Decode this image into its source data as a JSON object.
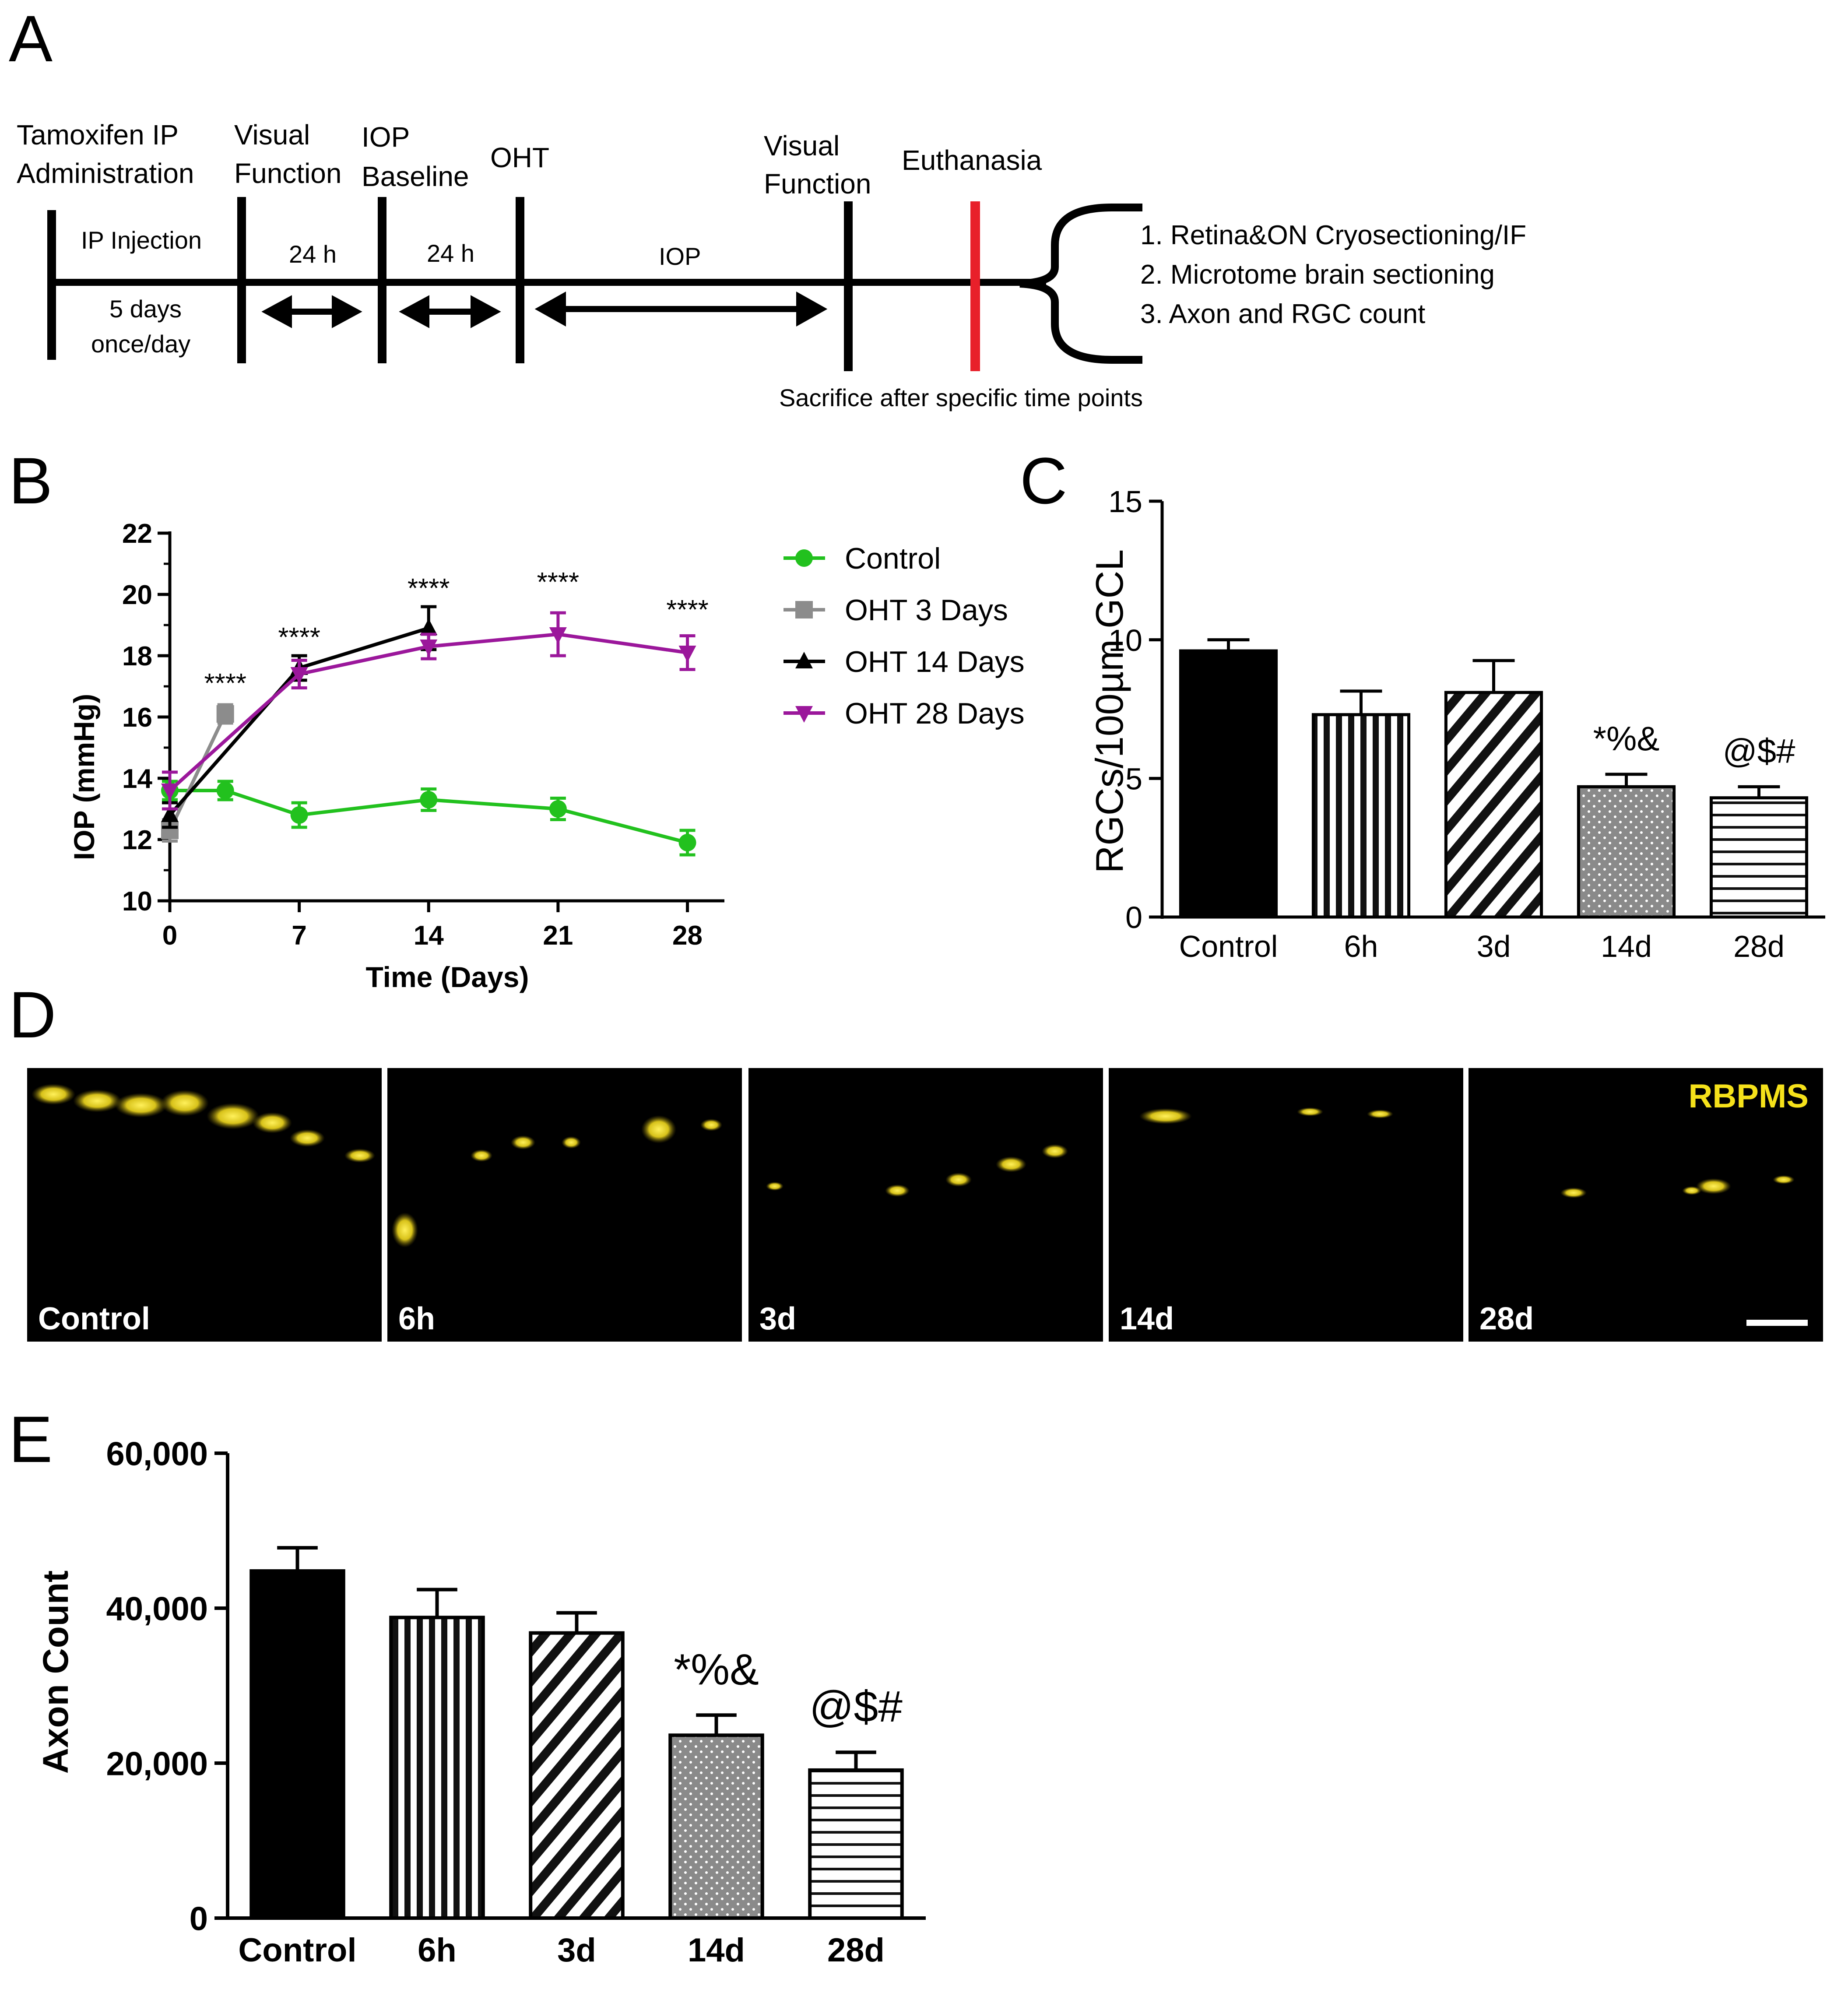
{
  "panels": {
    "A": "A",
    "B": "B",
    "C": "C",
    "D": "D",
    "E": "E"
  },
  "timeline": {
    "labels": {
      "tamoxifen_1": "Tamoxifen IP",
      "tamoxifen_2": "Administration",
      "visual_1_a": "Visual",
      "visual_1_b": "Function",
      "iop_base_a": "IOP",
      "iop_base_b": "Baseline",
      "oht": "OHT",
      "visual_2_a": "Visual",
      "visual_2_b": "Function",
      "euthanasia": "Euthanasia",
      "ip_injection": "IP Injection",
      "five_days": "5 days",
      "once_day": "once/day",
      "gap_1": "24 h",
      "gap_2": "24 h",
      "iop_period": "IOP",
      "sacrifice": "Sacrifice after specific time points"
    },
    "outcomes": [
      "1.  Retina&ON Cryosectioning/IF",
      "2.  Microtome brain sectioning",
      "3.  Axon and RGC count"
    ],
    "colors": {
      "line": "#000000",
      "euthanasia": "#e8202a"
    }
  },
  "chart_data": [
    {
      "id": "B",
      "type": "line",
      "title": "",
      "xlabel": "Time (Days)",
      "ylabel": "IOP (mmHg)",
      "xlim": [
        0,
        30
      ],
      "ylim": [
        10,
        22
      ],
      "xticks": [
        0,
        7,
        14,
        21,
        28
      ],
      "yticks": [
        10,
        12,
        14,
        16,
        18,
        20,
        22
      ],
      "legend_position": "right",
      "series": [
        {
          "name": "Control",
          "color": "#22c11e",
          "marker": "circle",
          "x": [
            0,
            3,
            7,
            14,
            21,
            28
          ],
          "y": [
            13.6,
            13.6,
            12.8,
            13.3,
            13.0,
            11.9
          ],
          "err": [
            0.3,
            0.3,
            0.4,
            0.35,
            0.35,
            0.4
          ]
        },
        {
          "name": "OHT 3 Days",
          "color": "#8c8c8c",
          "marker": "square",
          "x": [
            0,
            3
          ],
          "y": [
            12.3,
            16.1
          ],
          "err": [
            0.35,
            0.3
          ]
        },
        {
          "name": "OHT 14 Days",
          "color": "#000000",
          "marker": "triangle-up",
          "x": [
            0,
            7,
            14
          ],
          "y": [
            12.8,
            17.6,
            18.9
          ],
          "err": [
            0.4,
            0.4,
            0.7
          ]
        },
        {
          "name": "OHT 28 Days",
          "color": "#9b179b",
          "marker": "triangle-down",
          "x": [
            0,
            7,
            14,
            21,
            28
          ],
          "y": [
            13.6,
            17.4,
            18.3,
            18.7,
            18.1
          ],
          "err": [
            0.6,
            0.45,
            0.4,
            0.7,
            0.55
          ]
        }
      ],
      "annotations": [
        {
          "x": 3,
          "y": 16.8,
          "text": "****"
        },
        {
          "x": 7,
          "y": 18.3,
          "text": "****"
        },
        {
          "x": 14,
          "y": 19.9,
          "text": "****"
        },
        {
          "x": 21,
          "y": 20.1,
          "text": "****"
        },
        {
          "x": 28,
          "y": 19.2,
          "text": "****"
        }
      ]
    },
    {
      "id": "C",
      "type": "bar",
      "title": "",
      "xlabel": "",
      "ylabel": "RGCs/100µm GCL",
      "categories": [
        "Control",
        "6h",
        "3d",
        "14d",
        "28d"
      ],
      "values": [
        9.6,
        7.3,
        8.1,
        4.7,
        4.3
      ],
      "errors": [
        0.4,
        0.85,
        1.15,
        0.45,
        0.4
      ],
      "patterns": [
        "solid",
        "vertical",
        "diagonal",
        "dots",
        "horizontal"
      ],
      "ylim": [
        0,
        15
      ],
      "yticks": [
        0,
        5,
        10,
        15
      ],
      "bar_annotations": [
        "",
        "",
        "",
        "*%&",
        "@$#"
      ]
    },
    {
      "id": "E",
      "type": "bar",
      "title": "",
      "xlabel": "",
      "ylabel": "Axon Count",
      "categories": [
        "Control",
        "6h",
        "3d",
        "14d",
        "28d"
      ],
      "values": [
        44800,
        38800,
        36800,
        23600,
        19100
      ],
      "errors": [
        3000,
        3600,
        2600,
        2600,
        2300
      ],
      "patterns": [
        "solid",
        "vertical",
        "diagonal",
        "dots",
        "horizontal"
      ],
      "ylim": [
        0,
        60000
      ],
      "yticks": [
        0,
        20000,
        40000,
        60000
      ],
      "ytick_labels": [
        "0",
        "20,000",
        "40,000",
        "60,000"
      ],
      "bar_annotations": [
        "",
        "",
        "",
        "*%&",
        "@$#"
      ]
    }
  ],
  "micrographs": {
    "stain_label": "RBPMS",
    "stain_color": "#f5e11a",
    "panels": [
      "Control",
      "6h",
      "3d",
      "14d",
      "28d"
    ]
  }
}
